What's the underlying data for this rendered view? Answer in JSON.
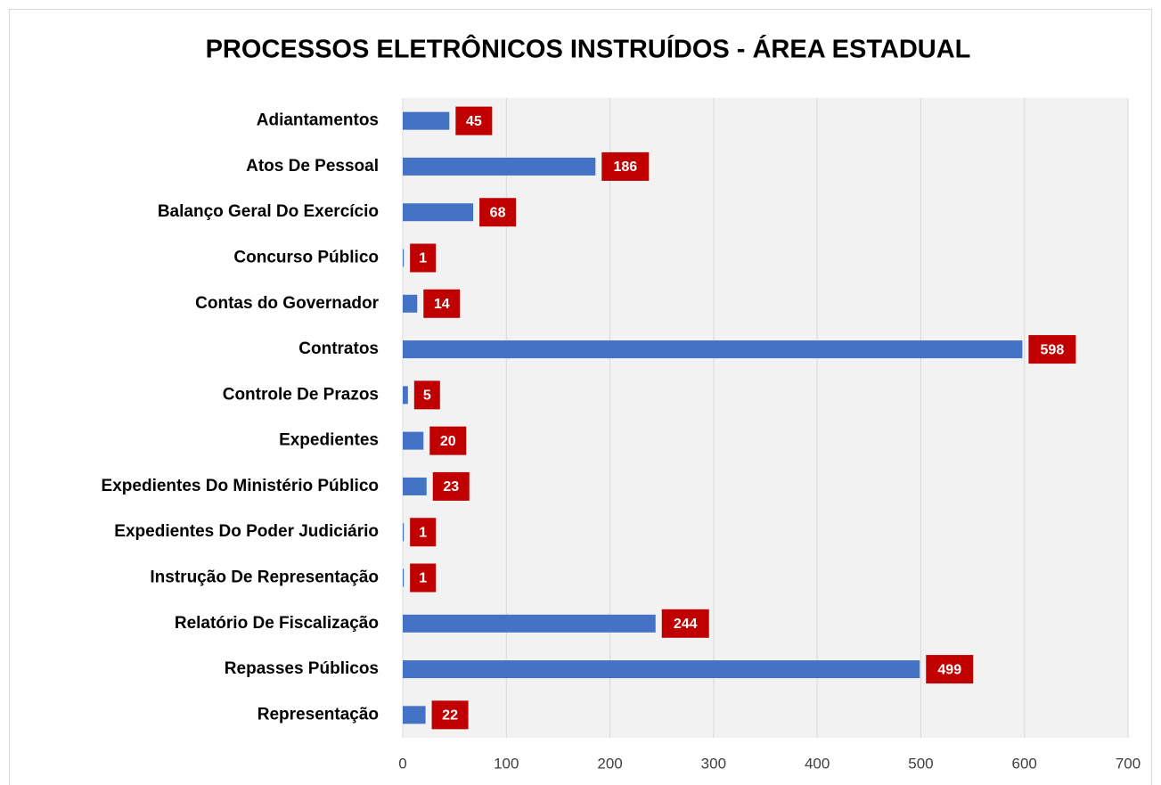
{
  "chart_data": {
    "type": "bar",
    "orientation": "horizontal",
    "title": "PROCESSOS ELETRÔNICOS INSTRUÍDOS - ÁREA ESTADUAL",
    "categories": [
      "Adiantamentos",
      "Atos De Pessoal",
      "Balanço Geral Do Exercício",
      "Concurso Público",
      "Contas do Governador",
      "Contratos",
      "Controle De Prazos",
      "Expedientes",
      "Expedientes Do Ministério Público",
      "Expedientes Do Poder Judiciário",
      "Instrução De Representação",
      "Relatório De Fiscalização",
      "Repasses Públicos",
      "Representação"
    ],
    "values": [
      45,
      186,
      68,
      1,
      14,
      598,
      5,
      20,
      23,
      1,
      1,
      244,
      499,
      22
    ],
    "color": "#4472c4",
    "label_color": "#c00000",
    "xlim": [
      0,
      700
    ],
    "xticks": [
      0,
      100,
      200,
      300,
      400,
      500,
      600,
      700
    ],
    "grid": true
  }
}
